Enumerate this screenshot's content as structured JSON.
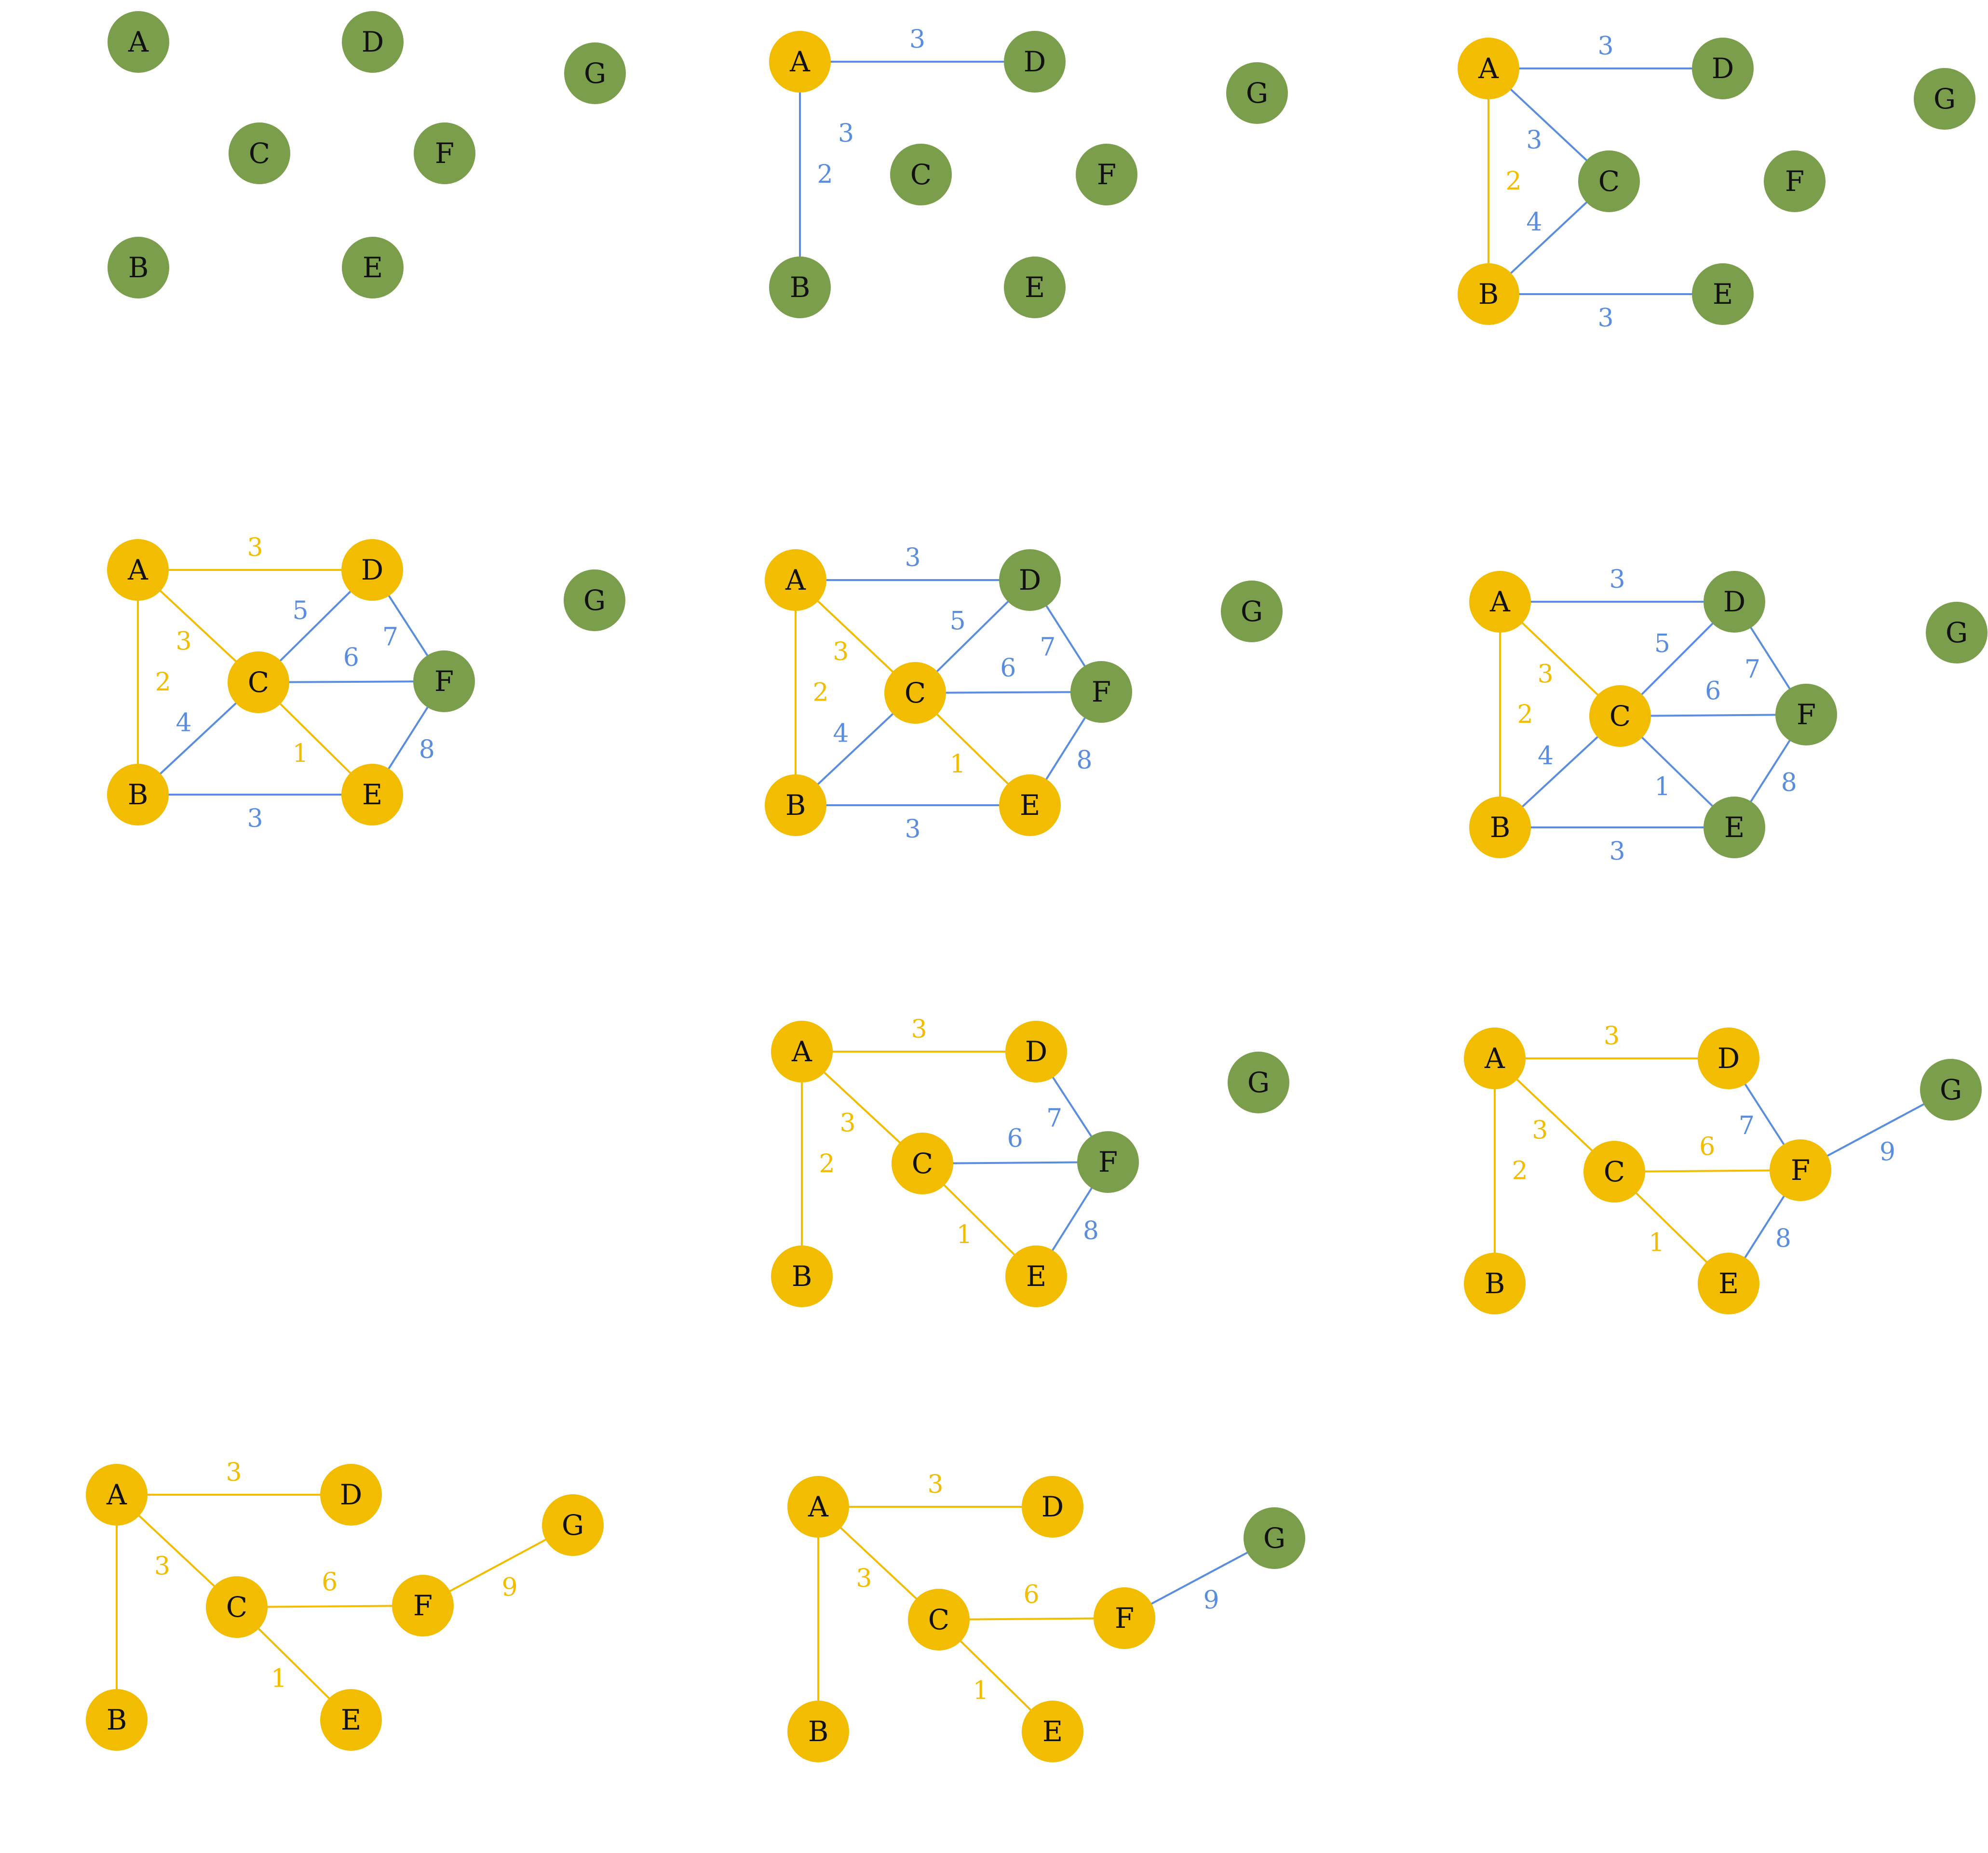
{
  "colors": {
    "unvisited_node": "#7a9e4b",
    "visited_node": "#f2bc00",
    "candidate_edge": "#5b8dde",
    "tree_edge": "#f2bc00",
    "node_text": "#111111"
  },
  "panels": [
    {
      "id": 1,
      "nodes": [
        {
          "id": "A",
          "state": "unvisited"
        },
        {
          "id": "D",
          "state": "unvisited"
        },
        {
          "id": "G",
          "state": "unvisited"
        },
        {
          "id": "C",
          "state": "unvisited"
        },
        {
          "id": "F",
          "state": "unvisited"
        },
        {
          "id": "B",
          "state": "unvisited"
        },
        {
          "id": "E",
          "state": "unvisited"
        }
      ],
      "edges": []
    },
    {
      "id": 2,
      "nodes": [
        {
          "id": "A",
          "state": "visited"
        },
        {
          "id": "D",
          "state": "unvisited"
        },
        {
          "id": "G",
          "state": "unvisited"
        },
        {
          "id": "C",
          "state": "unvisited"
        },
        {
          "id": "F",
          "state": "unvisited"
        },
        {
          "id": "B",
          "state": "unvisited"
        },
        {
          "id": "E",
          "state": "unvisited"
        }
      ],
      "edges": [
        {
          "from": "A",
          "to": "D",
          "weight": "3",
          "state": "candidate"
        },
        {
          "from": "A",
          "to": "B",
          "weight": "2",
          "state": "candidate"
        },
        {
          "from": "A",
          "to": "C",
          "weight": "3",
          "state": "label-only"
        }
      ]
    },
    {
      "id": 3,
      "nodes": [
        {
          "id": "A",
          "state": "visited"
        },
        {
          "id": "D",
          "state": "unvisited"
        },
        {
          "id": "G",
          "state": "unvisited"
        },
        {
          "id": "C",
          "state": "unvisited"
        },
        {
          "id": "F",
          "state": "unvisited"
        },
        {
          "id": "B",
          "state": "visited"
        },
        {
          "id": "E",
          "state": "unvisited"
        }
      ],
      "edges": [
        {
          "from": "A",
          "to": "D",
          "weight": "3",
          "state": "candidate"
        },
        {
          "from": "A",
          "to": "C",
          "weight": "3",
          "state": "candidate"
        },
        {
          "from": "A",
          "to": "B",
          "weight": "2",
          "state": "tree"
        },
        {
          "from": "B",
          "to": "C",
          "weight": "4",
          "state": "candidate"
        },
        {
          "from": "B",
          "to": "E",
          "weight": "3",
          "state": "candidate"
        }
      ]
    },
    {
      "id": 4,
      "nodes": [
        {
          "id": "A",
          "state": "visited"
        },
        {
          "id": "D",
          "state": "visited"
        },
        {
          "id": "G",
          "state": "unvisited"
        },
        {
          "id": "C",
          "state": "visited"
        },
        {
          "id": "F",
          "state": "unvisited"
        },
        {
          "id": "B",
          "state": "visited"
        },
        {
          "id": "E",
          "state": "visited"
        }
      ],
      "edges": [
        {
          "from": "A",
          "to": "D",
          "weight": "3",
          "state": "tree"
        },
        {
          "from": "A",
          "to": "C",
          "weight": "3",
          "state": "tree"
        },
        {
          "from": "A",
          "to": "B",
          "weight": "2",
          "state": "tree"
        },
        {
          "from": "C",
          "to": "D",
          "weight": "5",
          "state": "candidate"
        },
        {
          "from": "D",
          "to": "F",
          "weight": "7",
          "state": "candidate"
        },
        {
          "from": "C",
          "to": "F",
          "weight": "6",
          "state": "candidate"
        },
        {
          "from": "B",
          "to": "C",
          "weight": "4",
          "state": "candidate"
        },
        {
          "from": "C",
          "to": "E",
          "weight": "1",
          "state": "tree"
        },
        {
          "from": "E",
          "to": "F",
          "weight": "8",
          "state": "candidate"
        },
        {
          "from": "B",
          "to": "E",
          "weight": "3",
          "state": "candidate"
        }
      ]
    },
    {
      "id": 5,
      "nodes": [
        {
          "id": "A",
          "state": "visited"
        },
        {
          "id": "D",
          "state": "unvisited"
        },
        {
          "id": "G",
          "state": "unvisited"
        },
        {
          "id": "C",
          "state": "visited"
        },
        {
          "id": "F",
          "state": "unvisited"
        },
        {
          "id": "B",
          "state": "visited"
        },
        {
          "id": "E",
          "state": "visited"
        }
      ],
      "edges": [
        {
          "from": "A",
          "to": "D",
          "weight": "3",
          "state": "candidate"
        },
        {
          "from": "A",
          "to": "C",
          "weight": "3",
          "state": "tree"
        },
        {
          "from": "A",
          "to": "B",
          "weight": "2",
          "state": "tree"
        },
        {
          "from": "C",
          "to": "D",
          "weight": "5",
          "state": "candidate"
        },
        {
          "from": "D",
          "to": "F",
          "weight": "7",
          "state": "candidate"
        },
        {
          "from": "C",
          "to": "F",
          "weight": "6",
          "state": "candidate"
        },
        {
          "from": "B",
          "to": "C",
          "weight": "4",
          "state": "candidate"
        },
        {
          "from": "C",
          "to": "E",
          "weight": "1",
          "state": "tree"
        },
        {
          "from": "E",
          "to": "F",
          "weight": "8",
          "state": "candidate"
        },
        {
          "from": "B",
          "to": "E",
          "weight": "3",
          "state": "candidate"
        }
      ]
    },
    {
      "id": 6,
      "nodes": [
        {
          "id": "A",
          "state": "visited"
        },
        {
          "id": "D",
          "state": "unvisited"
        },
        {
          "id": "G",
          "state": "unvisited"
        },
        {
          "id": "C",
          "state": "visited"
        },
        {
          "id": "F",
          "state": "unvisited"
        },
        {
          "id": "B",
          "state": "visited"
        },
        {
          "id": "E",
          "state": "unvisited"
        }
      ],
      "edges": [
        {
          "from": "A",
          "to": "D",
          "weight": "3",
          "state": "candidate"
        },
        {
          "from": "A",
          "to": "C",
          "weight": "3",
          "state": "tree"
        },
        {
          "from": "A",
          "to": "B",
          "weight": "2",
          "state": "tree"
        },
        {
          "from": "C",
          "to": "D",
          "weight": "5",
          "state": "candidate"
        },
        {
          "from": "D",
          "to": "F",
          "weight": "7",
          "state": "candidate"
        },
        {
          "from": "C",
          "to": "F",
          "weight": "6",
          "state": "candidate"
        },
        {
          "from": "B",
          "to": "C",
          "weight": "4",
          "state": "candidate"
        },
        {
          "from": "C",
          "to": "E",
          "weight": "1",
          "state": "candidate"
        },
        {
          "from": "E",
          "to": "F",
          "weight": "8",
          "state": "candidate"
        },
        {
          "from": "B",
          "to": "E",
          "weight": "3",
          "state": "candidate"
        }
      ]
    },
    {
      "id": 7,
      "nodes": [
        {
          "id": "A",
          "state": "visited"
        },
        {
          "id": "D",
          "state": "visited"
        },
        {
          "id": "G",
          "state": "unvisited"
        },
        {
          "id": "C",
          "state": "visited"
        },
        {
          "id": "F",
          "state": "unvisited"
        },
        {
          "id": "B",
          "state": "visited"
        },
        {
          "id": "E",
          "state": "visited"
        }
      ],
      "edges": [
        {
          "from": "A",
          "to": "D",
          "weight": "3",
          "state": "tree"
        },
        {
          "from": "A",
          "to": "C",
          "weight": "3",
          "state": "tree"
        },
        {
          "from": "A",
          "to": "B",
          "weight": "2",
          "state": "tree"
        },
        {
          "from": "D",
          "to": "F",
          "weight": "7",
          "state": "candidate"
        },
        {
          "from": "C",
          "to": "F",
          "weight": "6",
          "state": "candidate"
        },
        {
          "from": "C",
          "to": "E",
          "weight": "1",
          "state": "tree"
        },
        {
          "from": "E",
          "to": "F",
          "weight": "8",
          "state": "candidate"
        }
      ]
    },
    {
      "id": 8,
      "nodes": [
        {
          "id": "A",
          "state": "visited"
        },
        {
          "id": "D",
          "state": "visited"
        },
        {
          "id": "G",
          "state": "unvisited"
        },
        {
          "id": "C",
          "state": "visited"
        },
        {
          "id": "F",
          "state": "visited"
        },
        {
          "id": "B",
          "state": "visited"
        },
        {
          "id": "E",
          "state": "visited"
        }
      ],
      "edges": [
        {
          "from": "A",
          "to": "D",
          "weight": "3",
          "state": "tree"
        },
        {
          "from": "A",
          "to": "C",
          "weight": "3",
          "state": "tree"
        },
        {
          "from": "A",
          "to": "B",
          "weight": "2",
          "state": "tree"
        },
        {
          "from": "D",
          "to": "F",
          "weight": "7",
          "state": "candidate"
        },
        {
          "from": "C",
          "to": "F",
          "weight": "6",
          "state": "tree"
        },
        {
          "from": "C",
          "to": "E",
          "weight": "1",
          "state": "tree"
        },
        {
          "from": "E",
          "to": "F",
          "weight": "8",
          "state": "candidate"
        },
        {
          "from": "F",
          "to": "G",
          "weight": "9",
          "state": "candidate"
        }
      ]
    },
    {
      "id": 9,
      "nodes": [
        {
          "id": "A",
          "state": "visited"
        },
        {
          "id": "D",
          "state": "visited"
        },
        {
          "id": "G",
          "state": "visited"
        },
        {
          "id": "C",
          "state": "visited"
        },
        {
          "id": "F",
          "state": "visited"
        },
        {
          "id": "B",
          "state": "visited"
        },
        {
          "id": "E",
          "state": "visited"
        }
      ],
      "edges": [
        {
          "from": "A",
          "to": "D",
          "weight": "3",
          "state": "tree"
        },
        {
          "from": "A",
          "to": "C",
          "weight": "3",
          "state": "tree"
        },
        {
          "from": "A",
          "to": "B",
          "weight": "",
          "state": "tree"
        },
        {
          "from": "C",
          "to": "F",
          "weight": "6",
          "state": "tree"
        },
        {
          "from": "C",
          "to": "E",
          "weight": "1",
          "state": "tree"
        },
        {
          "from": "F",
          "to": "G",
          "weight": "9",
          "state": "tree"
        }
      ]
    },
    {
      "id": 10,
      "nodes": [
        {
          "id": "A",
          "state": "visited"
        },
        {
          "id": "D",
          "state": "visited"
        },
        {
          "id": "G",
          "state": "unvisited"
        },
        {
          "id": "C",
          "state": "visited"
        },
        {
          "id": "F",
          "state": "visited"
        },
        {
          "id": "B",
          "state": "visited"
        },
        {
          "id": "E",
          "state": "visited"
        }
      ],
      "edges": [
        {
          "from": "A",
          "to": "D",
          "weight": "3",
          "state": "tree"
        },
        {
          "from": "A",
          "to": "C",
          "weight": "3",
          "state": "tree"
        },
        {
          "from": "A",
          "to": "B",
          "weight": "",
          "state": "tree"
        },
        {
          "from": "C",
          "to": "F",
          "weight": "6",
          "state": "tree"
        },
        {
          "from": "C",
          "to": "E",
          "weight": "1",
          "state": "tree"
        },
        {
          "from": "F",
          "to": "G",
          "weight": "9",
          "state": "candidate"
        }
      ]
    }
  ]
}
